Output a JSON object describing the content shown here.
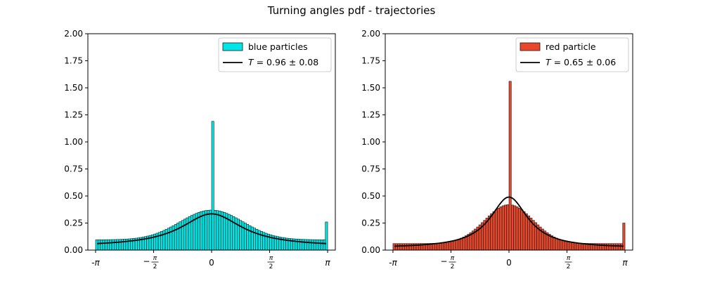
{
  "title": "Turning angles pdf - trajectories",
  "chart_data": [
    {
      "type": "bar",
      "title": "",
      "xlabel": "",
      "ylabel": "",
      "xlim": [
        -3.35,
        3.35
      ],
      "ylim": [
        0,
        2.0
      ],
      "yticks": [
        0,
        0.25,
        0.5,
        0.75,
        1.0,
        1.25,
        1.5,
        1.75,
        2.0
      ],
      "ytick_labels": [
        "0.00",
        "0.25",
        "0.50",
        "0.75",
        "1.00",
        "1.25",
        "1.50",
        "1.75",
        "2.00"
      ],
      "xtick_labels": [
        "-π",
        "−π/2",
        "0",
        "π/2",
        "π"
      ],
      "grid": false,
      "legend_position": "upper-right",
      "histogram": {
        "name": "blue particles",
        "color": "#00e5e5",
        "edge_color": "#1a1a1a",
        "bins": 100,
        "x_range": [
          -3.14159,
          3.14159
        ],
        "base_level": 0.095,
        "peak_height": 0.275,
        "peak_width": 0.85,
        "spike_height": 1.19,
        "edge_spike_height": 0.26
      },
      "fit_curve": {
        "name": "T = 0.96 ± 0.08",
        "label_var": "T",
        "label_rest": " = 0.96 ± 0.08",
        "color": "#000000",
        "floor": 0.032,
        "amplitude": 0.303,
        "width": 1.0
      }
    },
    {
      "type": "bar",
      "title": "",
      "xlabel": "",
      "ylabel": "",
      "xlim": [
        -3.35,
        3.35
      ],
      "ylim": [
        0,
        2.0
      ],
      "yticks": [
        0,
        0.25,
        0.5,
        0.75,
        1.0,
        1.25,
        1.5,
        1.75,
        2.0
      ],
      "ytick_labels": [
        "0.00",
        "0.25",
        "0.50",
        "0.75",
        "1.00",
        "1.25",
        "1.50",
        "1.75",
        "2.00"
      ],
      "xtick_labels": [
        "-π",
        "−π/2",
        "0",
        "π/2",
        "π"
      ],
      "grid": false,
      "legend_position": "upper-right",
      "histogram": {
        "name": "red particle",
        "color": "#e8472b",
        "edge_color": "#1a1a1a",
        "bins": 100,
        "x_range": [
          -3.14159,
          3.14159
        ],
        "base_level": 0.06,
        "peak_height": 0.36,
        "peak_width": 0.65,
        "spike_height": 1.56,
        "edge_spike_height": 0.25
      },
      "fit_curve": {
        "name": "T = 0.65 ± 0.06",
        "label_var": "T",
        "label_rest": " = 0.65 ± 0.06",
        "color": "#000000",
        "floor": 0.018,
        "amplitude": 0.472,
        "width": 0.62
      }
    }
  ]
}
